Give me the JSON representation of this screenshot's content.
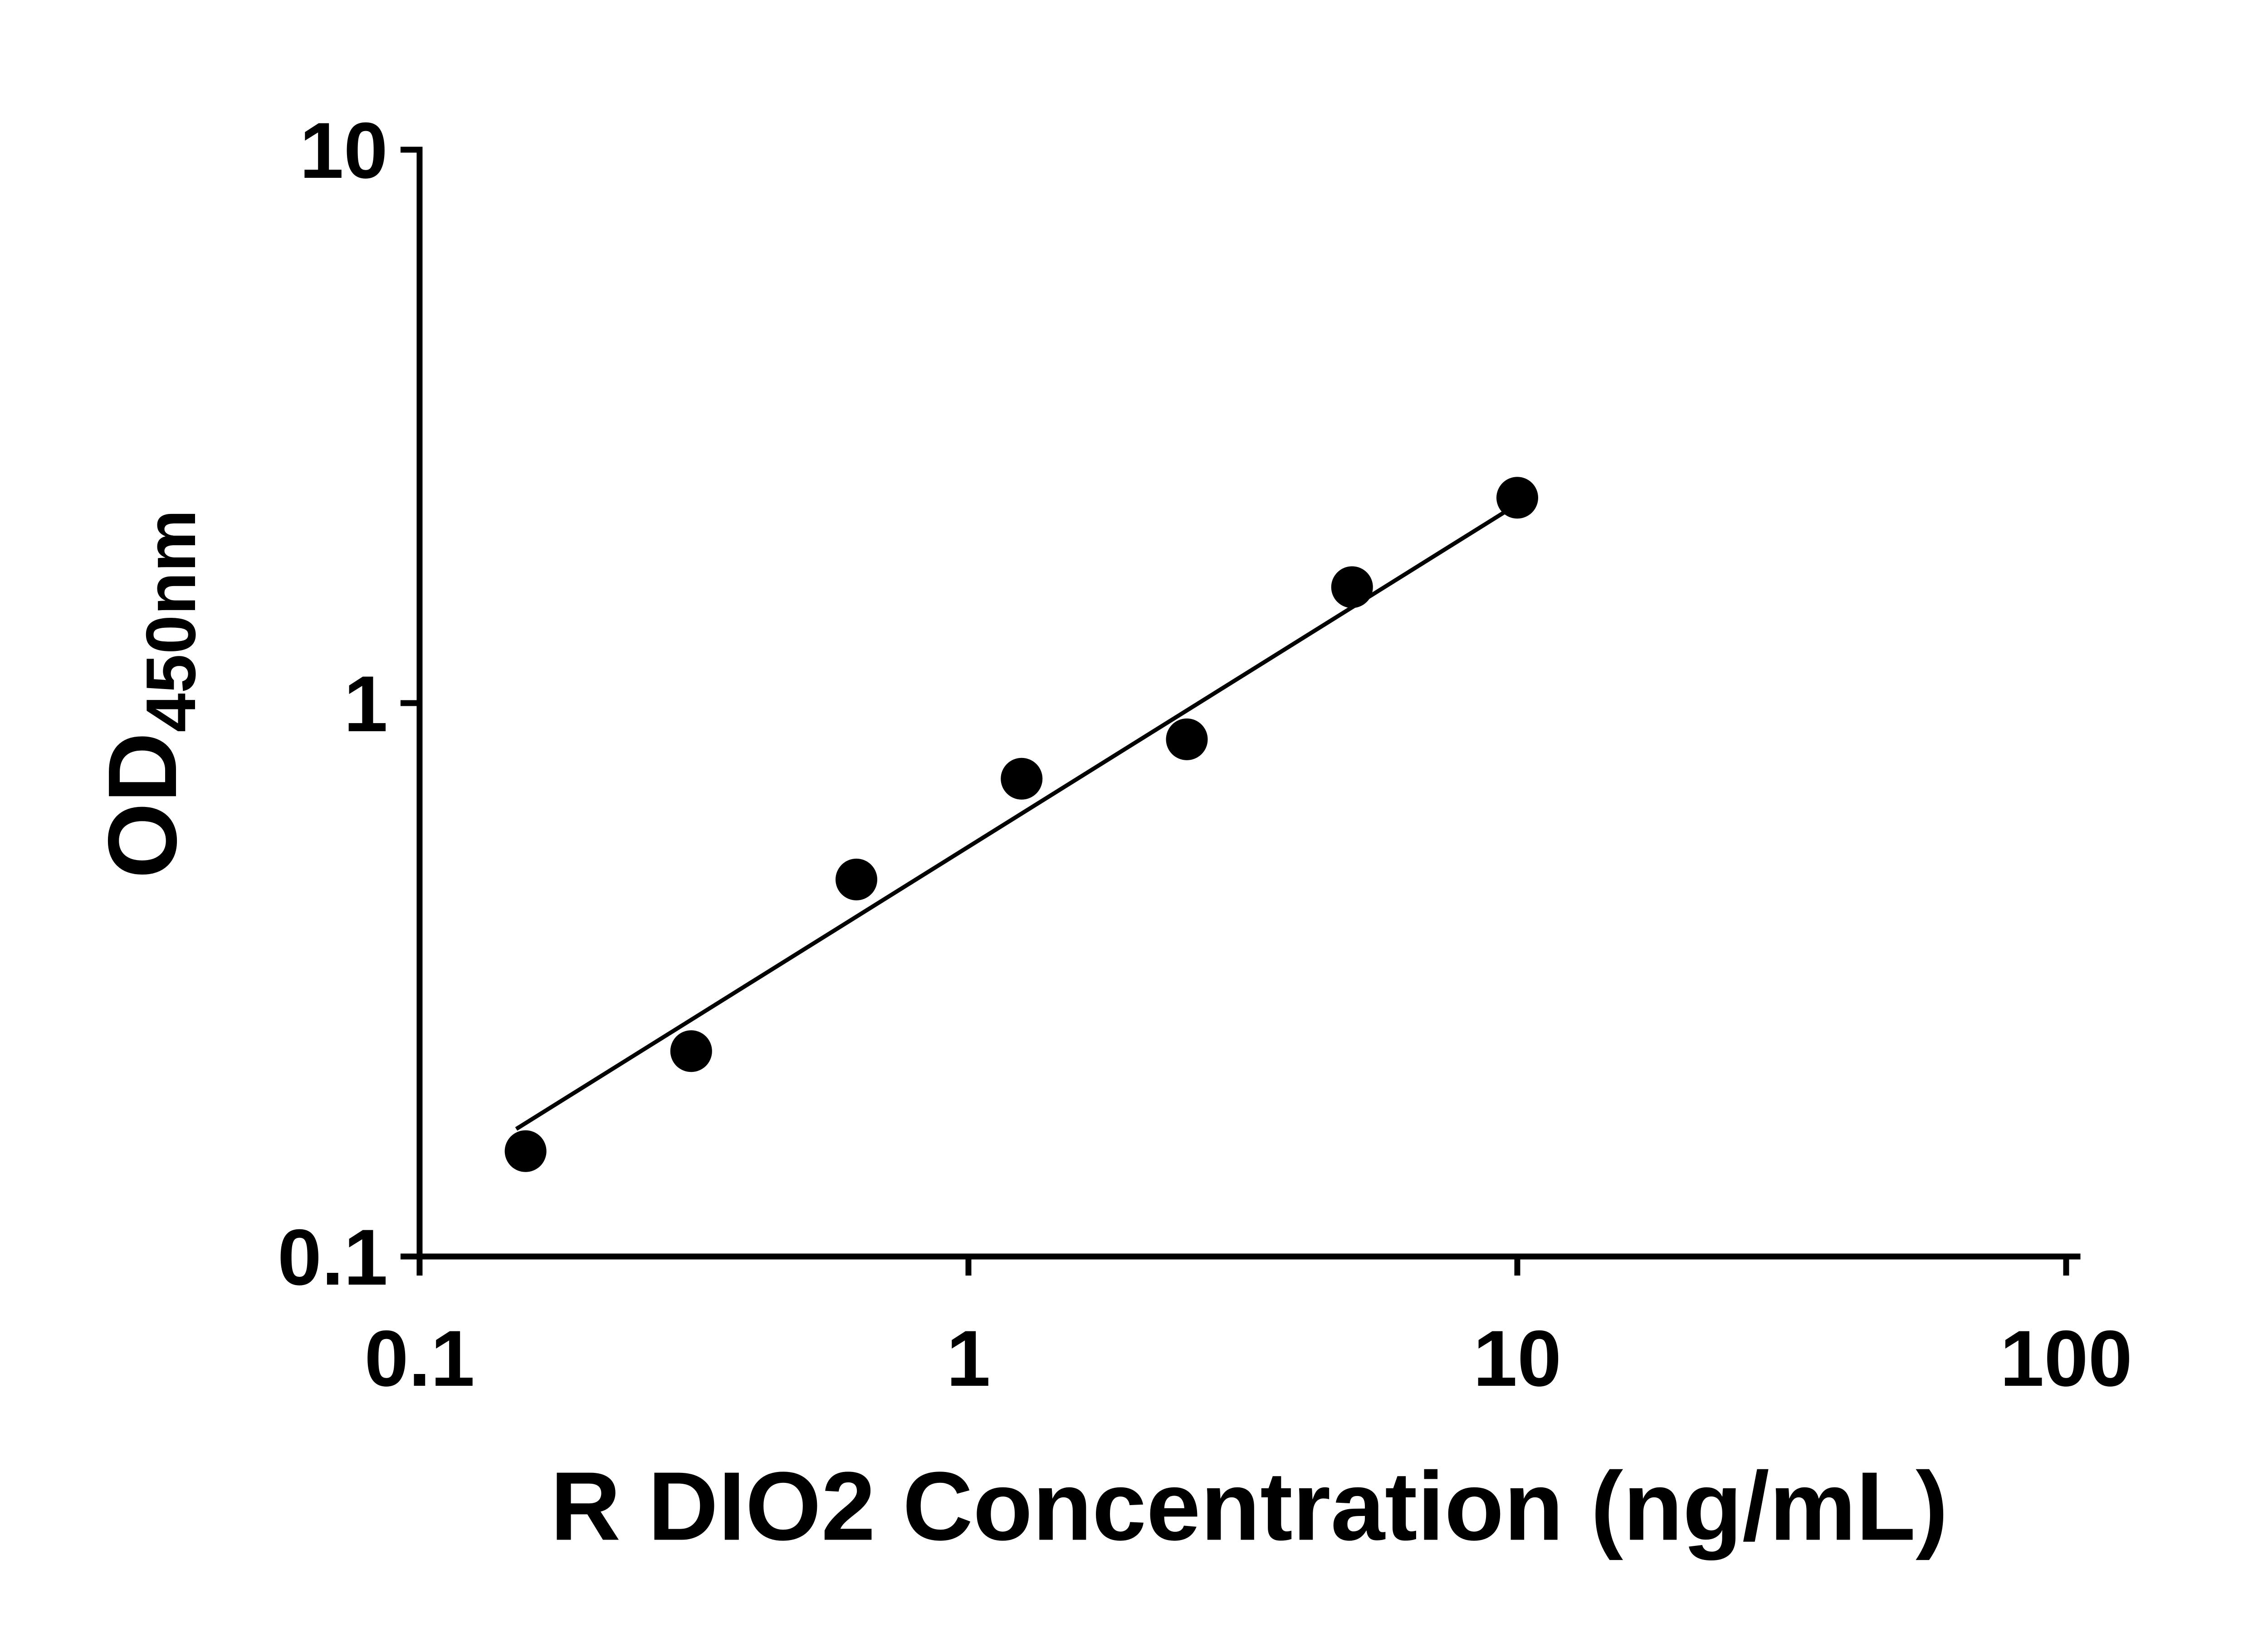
{
  "chart_data": {
    "type": "scatter",
    "title": "",
    "xlabel": "R DIO2 Concentration (ng/mL)",
    "ylabel": "OD",
    "ylabel_sub": "450nm",
    "x_scale": "log",
    "y_scale": "log",
    "xlim": [
      0.1,
      100
    ],
    "ylim": [
      0.1,
      10
    ],
    "x_ticks": [
      0.1,
      1,
      10,
      100
    ],
    "x_tick_labels": [
      "0.1",
      "1",
      "10",
      "100"
    ],
    "y_ticks": [
      0.1,
      1,
      10
    ],
    "y_tick_labels": [
      "0.1",
      "1",
      "10"
    ],
    "grid": false,
    "legend": "none",
    "background_color": "#ffffff",
    "axis_color": "#000000",
    "series": [
      {
        "name": "fit-line",
        "type": "line",
        "color": "#000000",
        "points": [
          {
            "x": 0.15,
            "y": 0.17
          },
          {
            "x": 10.3,
            "y": 2.33
          }
        ]
      },
      {
        "name": "standard-curve-points",
        "type": "scatter",
        "marker": "circle",
        "marker_size": 46,
        "color": "#000000",
        "points": [
          {
            "x": 0.156,
            "y": 0.155
          },
          {
            "x": 0.3125,
            "y": 0.235
          },
          {
            "x": 0.625,
            "y": 0.48
          },
          {
            "x": 1.25,
            "y": 0.73
          },
          {
            "x": 2.5,
            "y": 0.86
          },
          {
            "x": 5,
            "y": 1.62
          },
          {
            "x": 10,
            "y": 2.35
          }
        ]
      }
    ]
  }
}
